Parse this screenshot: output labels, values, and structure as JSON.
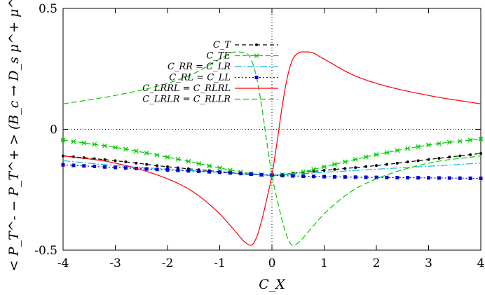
{
  "chart_data": {
    "type": "line",
    "title": "",
    "xlabel": "C_X",
    "ylabel": "< P_T^- − P_T^+ > (B_c → D_s μ^+ μ^-)",
    "xlim": [
      -4,
      4
    ],
    "ylim": [
      -0.5,
      0.5
    ],
    "xticks": [
      "-4",
      "-3",
      "-2",
      "-1",
      "0",
      "1",
      "2",
      "3",
      "4"
    ],
    "yticks": [
      "-0.5",
      "0",
      "0.5"
    ],
    "zero_lines": true,
    "legend_position": "top-left",
    "series": [
      {
        "name": "C_T",
        "color": "#000000",
        "style": "dash-dot-points",
        "x": [
          -4,
          -3,
          -2,
          -1,
          -0.5,
          0,
          0.5,
          1,
          2,
          3,
          4
        ],
        "y": [
          -0.11,
          -0.13,
          -0.155,
          -0.175,
          -0.185,
          -0.19,
          -0.18,
          -0.17,
          -0.15,
          -0.125,
          -0.1
        ]
      },
      {
        "name": "C_TE",
        "color": "#00cc00",
        "style": "dash-star",
        "x": [
          -4,
          -3,
          -2,
          -1,
          -0.5,
          0,
          0.5,
          1,
          2,
          3,
          4
        ],
        "y": [
          -0.045,
          -0.075,
          -0.115,
          -0.16,
          -0.18,
          -0.19,
          -0.18,
          -0.155,
          -0.105,
          -0.065,
          -0.04
        ]
      },
      {
        "name": "C_RR = C_LR",
        "color": "#00bbee",
        "style": "dash-dot",
        "x": [
          -4,
          -3,
          -2,
          -1,
          0,
          1,
          2,
          3,
          4
        ],
        "y": [
          -0.13,
          -0.15,
          -0.165,
          -0.178,
          -0.19,
          -0.178,
          -0.165,
          -0.153,
          -0.14
        ]
      },
      {
        "name": "C_RL = C_LL",
        "color": "#0000dd",
        "style": "dotted-squares",
        "x": [
          -4,
          -3,
          -2,
          -1,
          0,
          1,
          2,
          3,
          4
        ],
        "y": [
          -0.147,
          -0.158,
          -0.168,
          -0.178,
          -0.19,
          -0.196,
          -0.199,
          -0.201,
          -0.203
        ]
      },
      {
        "name": "C_LRRL = C_RLRL",
        "color": "#ff0000",
        "style": "solid",
        "x": [
          -4,
          -3,
          -2,
          -1.5,
          -1,
          -0.75,
          -0.5,
          -0.4,
          -0.3,
          -0.2,
          -0.1,
          0,
          0.1,
          0.2,
          0.3,
          0.4,
          0.5,
          0.6,
          0.7,
          1,
          1.5,
          2,
          3,
          4
        ],
        "y": [
          -0.11,
          -0.14,
          -0.205,
          -0.26,
          -0.35,
          -0.41,
          -0.47,
          -0.48,
          -0.45,
          -0.38,
          -0.29,
          -0.19,
          -0.05,
          0.1,
          0.22,
          0.29,
          0.315,
          0.32,
          0.32,
          0.29,
          0.23,
          0.19,
          0.14,
          0.105
        ]
      },
      {
        "name": "C_LRLR = C_RLLR",
        "color": "#00cc00",
        "style": "dashed",
        "x": [
          -4,
          -3,
          -2,
          -1.5,
          -1,
          -0.7,
          -0.5,
          -0.4,
          -0.3,
          -0.2,
          -0.1,
          0,
          0.1,
          0.2,
          0.3,
          0.4,
          0.5,
          0.75,
          1,
          1.5,
          2,
          3,
          4
        ],
        "y": [
          0.105,
          0.14,
          0.19,
          0.23,
          0.29,
          0.32,
          0.315,
          0.29,
          0.22,
          0.1,
          -0.05,
          -0.19,
          -0.29,
          -0.38,
          -0.45,
          -0.48,
          -0.47,
          -0.41,
          -0.35,
          -0.26,
          -0.205,
          -0.14,
          -0.11
        ]
      }
    ]
  }
}
